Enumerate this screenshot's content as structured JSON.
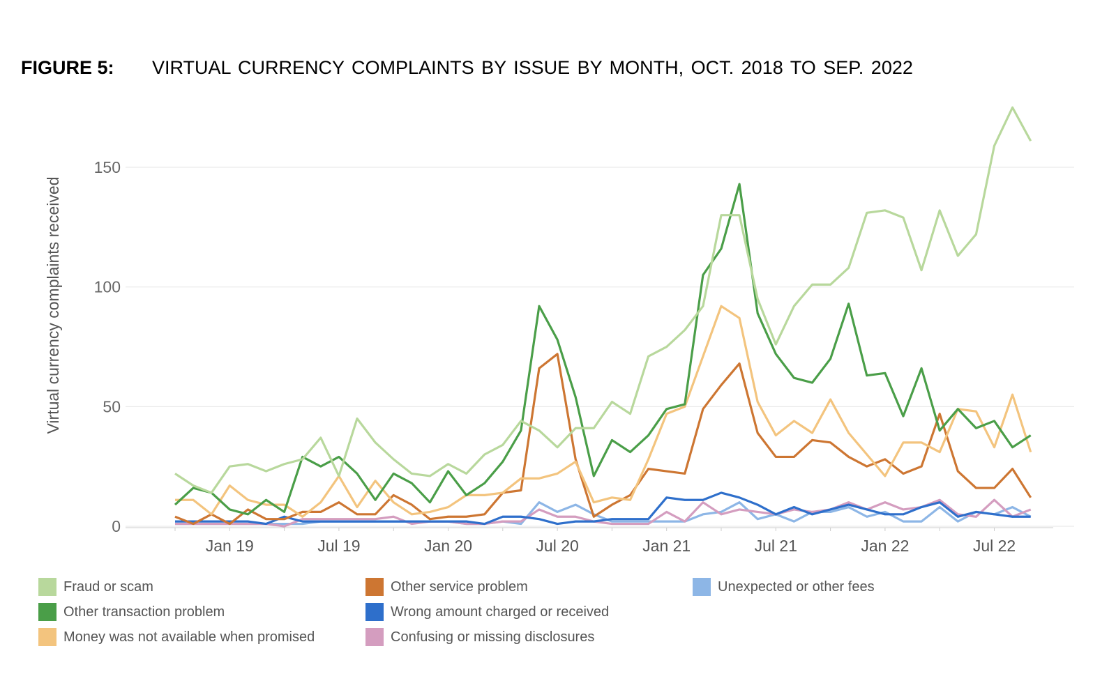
{
  "figure_label": "FIGURE 5:",
  "chart_data": {
    "type": "line",
    "title": "VIRTUAL CURRENCY COMPLAINTS BY ISSUE BY MONTH, OCT. 2018 TO SEP. 2022",
    "xlabel": "",
    "ylabel": "Virtual currency complaints received",
    "ylim": [
      0,
      175
    ],
    "yticks": [
      0,
      50,
      100,
      150
    ],
    "grid": true,
    "legend_position": "bottom",
    "x_start": "Oct 2018",
    "x_end": "Sep 2022",
    "x_tick_labels": [
      "Jan 19",
      "Jul 19",
      "Jan 20",
      "Jul 20",
      "Jan 21",
      "Jul 21",
      "Jan 22",
      "Jul 22"
    ],
    "x_tick_month_index": [
      3,
      9,
      15,
      21,
      27,
      33,
      39,
      45
    ],
    "series": [
      {
        "name": "Unexpected or other fees",
        "color": "#8db6e6",
        "values": [
          1,
          1,
          1,
          1,
          1,
          1,
          1,
          1,
          2,
          2,
          2,
          2,
          2,
          2,
          2,
          2,
          1,
          1,
          2,
          1,
          10,
          6,
          9,
          5,
          2,
          2,
          2,
          2,
          2,
          5,
          6,
          10,
          3,
          5,
          2,
          6,
          6,
          8,
          4,
          6,
          2,
          2,
          8,
          2,
          6,
          5,
          8,
          4
        ]
      },
      {
        "name": "Confusing or missing disclosures",
        "color": "#d49dbf",
        "values": [
          1,
          1,
          1,
          1,
          1,
          1,
          0,
          3,
          3,
          3,
          3,
          3,
          4,
          1,
          2,
          2,
          1,
          1,
          2,
          2,
          7,
          4,
          4,
          2,
          1,
          1,
          1,
          6,
          2,
          10,
          5,
          7,
          6,
          5,
          7,
          6,
          7,
          10,
          7,
          10,
          7,
          8,
          11,
          5,
          4,
          11,
          4,
          7
        ]
      },
      {
        "name": "Wrong amount charged or received",
        "color": "#2e6fcb",
        "values": [
          2,
          2,
          2,
          2,
          2,
          1,
          4,
          2,
          2,
          2,
          2,
          2,
          2,
          2,
          2,
          2,
          2,
          1,
          4,
          4,
          3,
          1,
          2,
          2,
          3,
          3,
          3,
          12,
          11,
          11,
          14,
          12,
          9,
          5,
          8,
          5,
          7,
          9,
          7,
          5,
          5,
          8,
          10,
          4,
          6,
          5,
          4,
          4
        ]
      },
      {
        "name": "Other service problem",
        "color": "#cd7632",
        "values": [
          4,
          1,
          5,
          1,
          7,
          3,
          3,
          6,
          6,
          10,
          5,
          5,
          13,
          9,
          3,
          4,
          4,
          5,
          14,
          15,
          66,
          72,
          28,
          4,
          9,
          13,
          24,
          23,
          22,
          49,
          59,
          68,
          39,
          29,
          29,
          36,
          35,
          29,
          25,
          28,
          22,
          25,
          47,
          23,
          16,
          16,
          24,
          12
        ]
      },
      {
        "name": "Money was not available when promised",
        "color": "#f3c47e",
        "values": [
          11,
          11,
          5,
          17,
          11,
          9,
          9,
          4,
          10,
          21,
          8,
          19,
          10,
          5,
          6,
          8,
          13,
          13,
          14,
          20,
          20,
          22,
          27,
          10,
          12,
          11,
          28,
          47,
          50,
          71,
          92,
          87,
          52,
          38,
          44,
          39,
          53,
          39,
          30,
          21,
          35,
          35,
          31,
          49,
          48,
          33,
          55,
          31
        ]
      },
      {
        "name": "Other transaction problem",
        "color": "#4a9e48",
        "values": [
          9,
          16,
          14,
          7,
          5,
          11,
          6,
          29,
          25,
          29,
          22,
          11,
          22,
          18,
          10,
          23,
          13,
          18,
          27,
          40,
          92,
          78,
          54,
          21,
          36,
          31,
          38,
          49,
          51,
          105,
          116,
          143,
          89,
          72,
          62,
          60,
          70,
          93,
          63,
          64,
          46,
          66,
          40,
          49,
          41,
          44,
          33,
          38
        ]
      },
      {
        "name": "Fraud or scam",
        "color": "#b8d89c",
        "values": [
          22,
          17,
          14,
          25,
          26,
          23,
          26,
          28,
          37,
          21,
          45,
          35,
          28,
          22,
          21,
          26,
          22,
          30,
          34,
          44,
          40,
          33,
          41,
          41,
          52,
          47,
          71,
          75,
          82,
          92,
          130,
          130,
          95,
          76,
          92,
          101,
          101,
          108,
          131,
          132,
          129,
          107,
          132,
          113,
          122,
          159,
          175,
          161
        ]
      }
    ]
  },
  "legend": [
    {
      "label": "Fraud or scam",
      "color": "#b8d89c"
    },
    {
      "label": "Other transaction problem",
      "color": "#4a9e48"
    },
    {
      "label": "Money was not available when promised",
      "color": "#f3c47e"
    },
    {
      "label": "Other service problem",
      "color": "#cd7632"
    },
    {
      "label": "Wrong amount charged or received",
      "color": "#2e6fcb"
    },
    {
      "label": "Confusing or missing disclosures",
      "color": "#d49dbf"
    },
    {
      "label": "Unexpected or other fees",
      "color": "#8db6e6"
    }
  ]
}
